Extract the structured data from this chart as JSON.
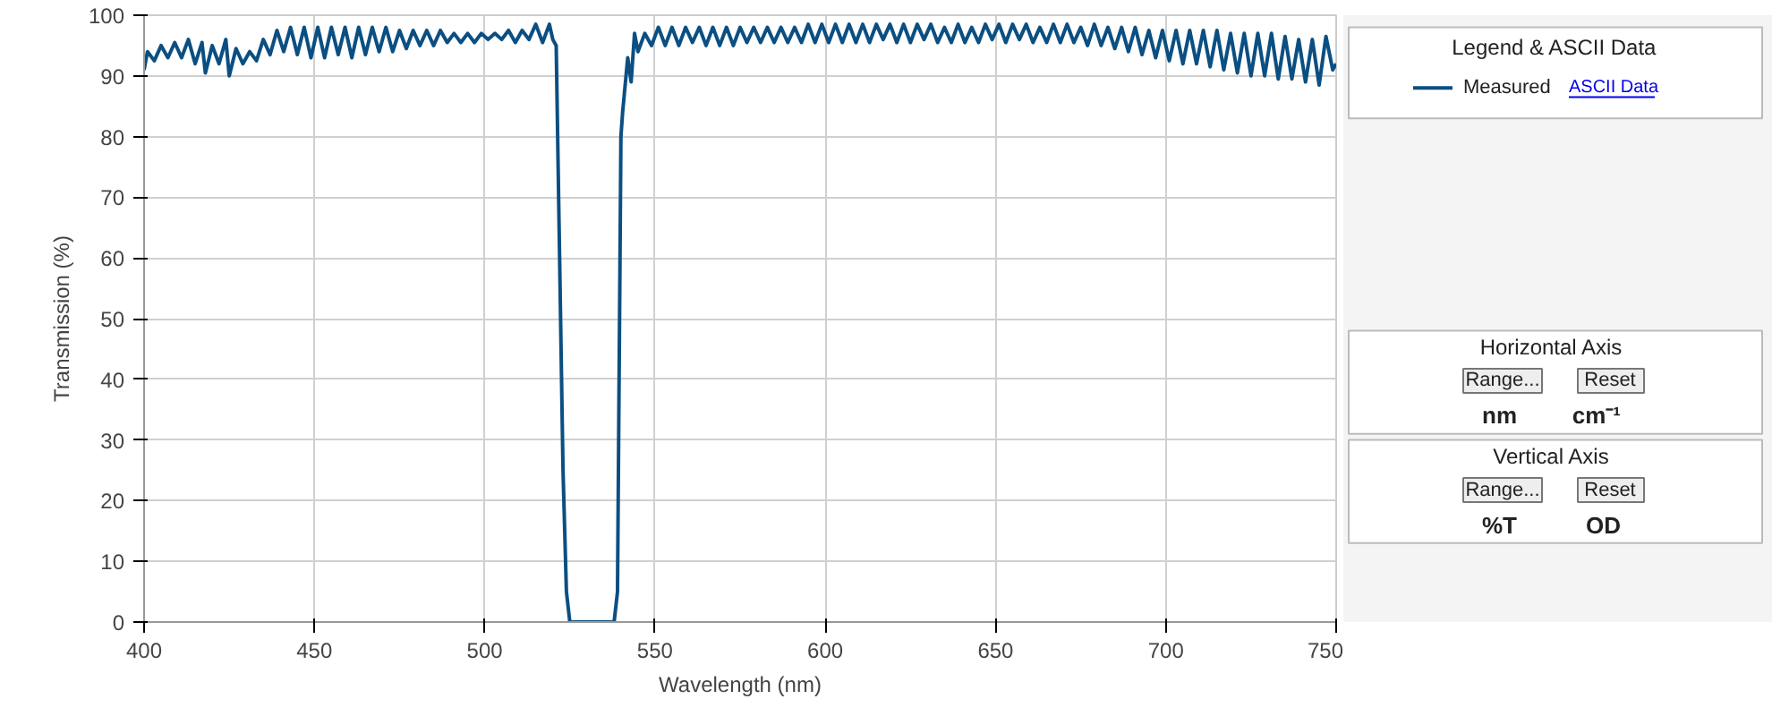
{
  "chart_data": {
    "type": "line",
    "xlabel": "Wavelength (nm)",
    "ylabel": "Transmission (%)",
    "xlim": [
      400,
      750
    ],
    "ylim": [
      0,
      100
    ],
    "xticks": [
      400,
      450,
      500,
      550,
      600,
      650,
      700,
      750
    ],
    "yticks": [
      0,
      10,
      20,
      30,
      40,
      50,
      60,
      70,
      80,
      90,
      100
    ],
    "grid": true,
    "legend": "right",
    "legend_title": "Legend & ASCII Data",
    "marker": "none",
    "line_style": "solid",
    "annotations": [
      "ASCII Data",
      "Horizontal  Axis",
      "Range...",
      "Reset",
      "nm",
      "cm⁻¹",
      "Vertical  Axis",
      "Range...",
      "Reset",
      "%T",
      "OD"
    ],
    "series": [
      {
        "name": "Measured",
        "color": "#0b4f82",
        "x": [
          400,
          401,
          403,
          405,
          407,
          409,
          411,
          413,
          415,
          417,
          418,
          420,
          422,
          424,
          425,
          427,
          429,
          431,
          433,
          435,
          437,
          439,
          441,
          443,
          445,
          447,
          449,
          451,
          453,
          455,
          457,
          459,
          461,
          463,
          465,
          467,
          469,
          471,
          473,
          475,
          477,
          479,
          481,
          483,
          485,
          487,
          489,
          491,
          493,
          495,
          497,
          499,
          501,
          503,
          505,
          507,
          509,
          511,
          513,
          515,
          517,
          519,
          520,
          521,
          522,
          523,
          524,
          525,
          538,
          539,
          540,
          540.5,
          541,
          542,
          543,
          544,
          545,
          547,
          549,
          551,
          553,
          555,
          557,
          559,
          561,
          563,
          565,
          567,
          569,
          571,
          573,
          575,
          577,
          579,
          581,
          583,
          585,
          587,
          589,
          591,
          593,
          595,
          597,
          599,
          601,
          603,
          605,
          607,
          609,
          611,
          613,
          615,
          617,
          619,
          621,
          623,
          625,
          627,
          629,
          631,
          633,
          635,
          637,
          639,
          641,
          643,
          645,
          647,
          649,
          651,
          653,
          655,
          657,
          659,
          661,
          663,
          665,
          667,
          669,
          671,
          673,
          675,
          677,
          679,
          681,
          683,
          685,
          687,
          689,
          691,
          693,
          695,
          697,
          699,
          701,
          703,
          705,
          707,
          709,
          711,
          713,
          715,
          717,
          719,
          721,
          723,
          725,
          727,
          729,
          731,
          733,
          735,
          737,
          739,
          741,
          743,
          745,
          747,
          749,
          750
        ],
        "values": [
          91,
          94,
          92.5,
          95,
          93,
          95.5,
          93,
          96,
          92,
          95.5,
          90.5,
          95,
          92,
          96,
          90,
          94.5,
          92,
          94,
          92.5,
          96,
          93.5,
          97.5,
          94,
          98,
          93.5,
          98,
          93,
          98,
          93,
          98,
          93.5,
          98,
          93,
          98,
          93.5,
          98,
          94,
          98,
          94,
          97.5,
          94.5,
          97.5,
          95,
          97.5,
          95,
          97.5,
          95.5,
          97,
          95.5,
          97,
          95.5,
          97,
          96,
          97,
          96,
          97.5,
          95.5,
          97.5,
          96,
          98.5,
          95.5,
          98.5,
          96,
          95,
          60,
          25,
          5,
          0,
          0,
          5,
          80,
          84,
          87,
          93,
          89,
          97,
          94,
          97,
          95,
          98,
          95,
          98,
          95,
          98,
          95.5,
          98,
          95,
          98,
          95,
          98,
          95,
          98,
          95.5,
          98,
          95.5,
          98,
          95.5,
          98,
          95.5,
          98,
          95.5,
          98.5,
          95.5,
          98.5,
          95.5,
          98.5,
          95.5,
          98.5,
          95.5,
          98.5,
          95.5,
          98.5,
          96,
          98.5,
          95.5,
          98.5,
          95.5,
          98.5,
          96,
          98.5,
          95.5,
          98,
          95.5,
          98.5,
          95.5,
          98,
          95.5,
          98.5,
          96,
          98.5,
          95.5,
          98.5,
          96,
          98.5,
          95.5,
          98,
          95.5,
          98.5,
          95.5,
          98.5,
          95.5,
          98,
          95,
          98.5,
          95,
          98,
          94.5,
          98,
          94,
          98,
          93.5,
          97.5,
          93,
          97.5,
          92.5,
          97.5,
          92,
          97.5,
          92,
          97.5,
          91.5,
          97.5,
          91,
          97,
          90.5,
          97,
          90,
          97,
          90,
          97,
          89.5,
          96.5,
          89.5,
          96,
          89,
          96,
          88.5,
          96.5,
          91,
          92
        ]
      }
    ]
  }
}
